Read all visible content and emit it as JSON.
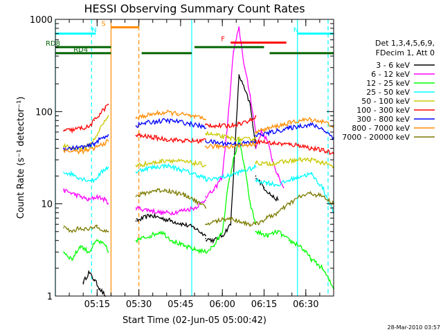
{
  "chart_data": {
    "type": "line",
    "title": "HESSI Observing Summary Count Rates",
    "xlabel": "Start Time (02-Jun-05 05:00:42)",
    "ylabel": "Count Rate (s⁻¹ detector⁻¹)",
    "yscale": "log",
    "ylim": [
      1,
      1000
    ],
    "xlim_minutes": [
      0,
      100
    ],
    "x_tick_labels": [
      "05:15",
      "05:30",
      "05:45",
      "06:00",
      "06:15",
      "06:30"
    ],
    "x_tick_minutes": [
      15.0,
      30.0,
      45.0,
      60.0,
      75.0,
      90.0
    ],
    "y_tick_labels": [
      "1",
      "10",
      "100",
      "1000"
    ],
    "y_tick_values": [
      1,
      10,
      100,
      1000
    ],
    "legend_header": [
      "Det 1,3,4,5,6,9,",
      "FDecim 1, Att 0"
    ],
    "footer_date": "28-Mar-2010 03:57",
    "series": [
      {
        "name": "3 - 6 keV",
        "color": "#000000",
        "segments": [
          {
            "x": [
              10,
              12,
              14,
              16,
              18
            ],
            "y": [
              1.4,
              1.8,
              1.5,
              1.2,
              1.0
            ]
          },
          {
            "x": [
              29,
              34,
              38,
              42,
              46,
              50,
              54
            ],
            "y": [
              6.5,
              7.5,
              7.0,
              6.5,
              6.0,
              5.5,
              4.5
            ]
          },
          {
            "x": [
              54,
              57,
              60,
              63,
              66,
              70,
              72
            ],
            "y": [
              4.2,
              4.0,
              4.5,
              6.0,
              250,
              120,
              40
            ]
          },
          {
            "x": [
              72,
              75,
              78,
              80
            ],
            "y": [
              20,
              15,
              12,
              11
            ]
          }
        ]
      },
      {
        "name": "6 - 12 keV",
        "color": "#ff00ff",
        "segments": [
          {
            "x": [
              3,
              6,
              9,
              12,
              15,
              18,
              19
            ],
            "y": [
              14,
              13,
              12,
              11,
              12,
              11,
              10
            ]
          },
          {
            "x": [
              29,
              34,
              38,
              42,
              46,
              50,
              54
            ],
            "y": [
              9,
              8.5,
              8,
              8,
              8.5,
              9,
              11
            ]
          },
          {
            "x": [
              54,
              57,
              60,
              62,
              64,
              66,
              68,
              70,
              72
            ],
            "y": [
              12,
              14,
              20,
              80,
              450,
              800,
              300,
              150,
              60
            ]
          },
          {
            "x": [
              72,
              74,
              76,
              78,
              80,
              82
            ],
            "y": [
              40,
              60,
              50,
              30,
              20,
              15
            ]
          }
        ]
      },
      {
        "name": "12 - 25 keV",
        "color": "#00ff00",
        "segments": [
          {
            "x": [
              3,
              6,
              9,
              12,
              15,
              18,
              19
            ],
            "y": [
              3.0,
              2.5,
              3.5,
              3.0,
              4.0,
              3.5,
              3.0
            ]
          },
          {
            "x": [
              29,
              34,
              38,
              42,
              46,
              50,
              54
            ],
            "y": [
              4.0,
              4.5,
              5.0,
              4.0,
              3.5,
              3.2,
              3.0
            ]
          },
          {
            "x": [
              54,
              57,
              60,
              62,
              64,
              66,
              68,
              70,
              72
            ],
            "y": [
              3.0,
              3.5,
              5.0,
              15,
              30,
              50,
              25,
              10,
              6
            ]
          },
          {
            "x": [
              72,
              76,
              80,
              84,
              88,
              92,
              96,
              100
            ],
            "y": [
              5,
              4.5,
              5,
              4,
              3.5,
              2.5,
              2,
              1.2
            ]
          }
        ]
      },
      {
        "name": "25 - 50 keV",
        "color": "#00ffff",
        "segments": [
          {
            "x": [
              3,
              6,
              9,
              12,
              14,
              16,
              18,
              19
            ],
            "y": [
              22,
              21,
              19,
              18,
              18,
              21,
              24,
              25
            ]
          },
          {
            "x": [
              29,
              32,
              36,
              40,
              44,
              48,
              52,
              54
            ],
            "y": [
              22,
              24,
              25,
              26,
              24,
              22,
              20,
              19
            ]
          },
          {
            "x": [
              54,
              58,
              62,
              66,
              70,
              72
            ],
            "y": [
              18,
              19,
              20,
              22,
              24,
              25
            ]
          },
          {
            "x": [
              72,
              76,
              80,
              84,
              88,
              92,
              96,
              100
            ],
            "y": [
              18,
              17,
              16,
              18,
              20,
              21,
              15,
              8
            ]
          }
        ]
      },
      {
        "name": "50 - 100 keV",
        "color": "#c8c800",
        "segments": [
          {
            "x": [
              3,
              6,
              9,
              12,
              14,
              16,
              18,
              19
            ],
            "y": [
              42,
              40,
              40,
              42,
              50,
              65,
              80,
              90
            ]
          },
          {
            "x": [
              29,
              32,
              36,
              40,
              44,
              48,
              52,
              54
            ],
            "y": [
              26,
              27,
              28,
              30,
              29,
              28,
              27,
              26
            ]
          },
          {
            "x": [
              54,
              58,
              62,
              66,
              70,
              72
            ],
            "y": [
              58,
              55,
              52,
              50,
              50,
              52
            ]
          },
          {
            "x": [
              72,
              76,
              80,
              84,
              88,
              92,
              96,
              100
            ],
            "y": [
              28,
              27,
              28,
              29,
              30,
              30,
              28,
              25
            ]
          }
        ]
      },
      {
        "name": "100 - 300 keV",
        "color": "#ff0000",
        "segments": [
          {
            "x": [
              3,
              6,
              9,
              12,
              14,
              16,
              18,
              19
            ],
            "y": [
              62,
              63,
              66,
              68,
              80,
              95,
              110,
              120
            ]
          },
          {
            "x": [
              29,
              32,
              36,
              40,
              44,
              48,
              52,
              54
            ],
            "y": [
              55,
              54,
              52,
              50,
              49,
              48,
              48,
              50
            ]
          },
          {
            "x": [
              54,
              58,
              62,
              66,
              70,
              72
            ],
            "y": [
              72,
              70,
              70,
              74,
              80,
              90
            ]
          },
          {
            "x": [
              72,
              76,
              80,
              84,
              88,
              92,
              96,
              100
            ],
            "y": [
              48,
              46,
              45,
              44,
              43,
              40,
              38,
              35
            ]
          }
        ]
      },
      {
        "name": "300 - 800 keV",
        "color": "#0000ff",
        "segments": [
          {
            "x": [
              3,
              6,
              9,
              12,
              14,
              16,
              18,
              19
            ],
            "y": [
              40,
              40,
              41,
              42,
              45,
              50,
              54,
              56
            ]
          },
          {
            "x": [
              29,
              32,
              36,
              40,
              44,
              48,
              52,
              54
            ],
            "y": [
              70,
              75,
              78,
              80,
              78,
              74,
              70,
              66
            ]
          },
          {
            "x": [
              54,
              58,
              62,
              66,
              70,
              72
            ],
            "y": [
              48,
              46,
              45,
              45,
              46,
              47
            ]
          },
          {
            "x": [
              72,
              76,
              80,
              84,
              88,
              92,
              96,
              100
            ],
            "y": [
              55,
              58,
              62,
              66,
              70,
              72,
              65,
              52
            ]
          }
        ]
      },
      {
        "name": "800 - 7000 keV",
        "color": "#ff8c00",
        "segments": [
          {
            "x": [
              3,
              6,
              9,
              12,
              14,
              16,
              18,
              19
            ],
            "y": [
              38,
              37,
              37,
              38,
              40,
              43,
              46,
              48
            ]
          },
          {
            "x": [
              29,
              32,
              36,
              40,
              44,
              48,
              52,
              54
            ],
            "y": [
              85,
              90,
              95,
              98,
              95,
              90,
              85,
              82
            ]
          },
          {
            "x": [
              54,
              58,
              62,
              66,
              70,
              72
            ],
            "y": [
              42,
              42,
              42,
              43,
              44,
              45
            ]
          },
          {
            "x": [
              72,
              76,
              80,
              84,
              88,
              92,
              96,
              100
            ],
            "y": [
              60,
              65,
              70,
              75,
              80,
              82,
              78,
              70
            ]
          }
        ]
      },
      {
        "name": "7000 - 20000 keV",
        "color": "#7a7a00",
        "segments": [
          {
            "x": [
              3,
              6,
              9,
              12,
              15,
              18,
              19
            ],
            "y": [
              5.5,
              5.0,
              5.5,
              5.2,
              5.8,
              5.0,
              5.0
            ]
          },
          {
            "x": [
              29,
              32,
              36,
              40,
              44,
              48,
              52,
              54
            ],
            "y": [
              12,
              13,
              14,
              14,
              13,
              12,
              10,
              9
            ]
          },
          {
            "x": [
              54,
              58,
              62,
              66,
              70,
              72
            ],
            "y": [
              6,
              6.5,
              7,
              6.5,
              6,
              6
            ]
          },
          {
            "x": [
              72,
              76,
              80,
              84,
              88,
              92,
              96,
              100
            ],
            "y": [
              6,
              7,
              8,
              10,
              12,
              13,
              12,
              10
            ]
          }
        ]
      }
    ],
    "state_bars": [
      {
        "label": "N",
        "color": "#00ffff",
        "y": 700,
        "x_start": 0,
        "x_end": 14.5,
        "label_x": 14.5
      },
      {
        "label": "N",
        "color": "#00ffff",
        "y": 700,
        "x_start": 87,
        "x_end": 100,
        "label_x": 87
      },
      {
        "label": "S",
        "color": "#ff8c00",
        "y": 820,
        "x_start": 20,
        "x_end": 30,
        "label_x": 18
      },
      {
        "label": "F",
        "color": "#ff0000",
        "y": 560,
        "x_start": 63,
        "x_end": 83,
        "label_x": 61
      },
      {
        "label": "RD8",
        "color": "#006400",
        "y": 500,
        "x_start": 0,
        "x_end": 20,
        "label_x": -4
      },
      {
        "label": "RD8",
        "color": "#006400",
        "y": 500,
        "x_start": 50,
        "x_end": 75,
        "label_x": -4
      },
      {
        "label": "RD4",
        "color": "#006400",
        "y": 430,
        "x_start": 0,
        "x_end": 20,
        "label_x": 4
      },
      {
        "label": "RD4",
        "color": "#006400",
        "y": 430,
        "x_start": 31,
        "x_end": 49,
        "label_x": 4
      },
      {
        "label": "RD4",
        "color": "#006400",
        "y": 430,
        "x_start": 77,
        "x_end": 100,
        "label_x": 4
      }
    ],
    "vertical_markers": [
      {
        "x": 0,
        "color": "#00ffff",
        "style": "solid"
      },
      {
        "x": 13,
        "color": "#00ffff",
        "style": "dashed"
      },
      {
        "x": 20,
        "color": "#ff8c00",
        "style": "solid"
      },
      {
        "x": 30,
        "color": "#ff8c00",
        "style": "dashed"
      },
      {
        "x": 49,
        "color": "#00ffff",
        "style": "solid"
      },
      {
        "x": 87,
        "color": "#00ffff",
        "style": "solid"
      },
      {
        "x": 98,
        "color": "#00ffff",
        "style": "dashed"
      }
    ]
  }
}
